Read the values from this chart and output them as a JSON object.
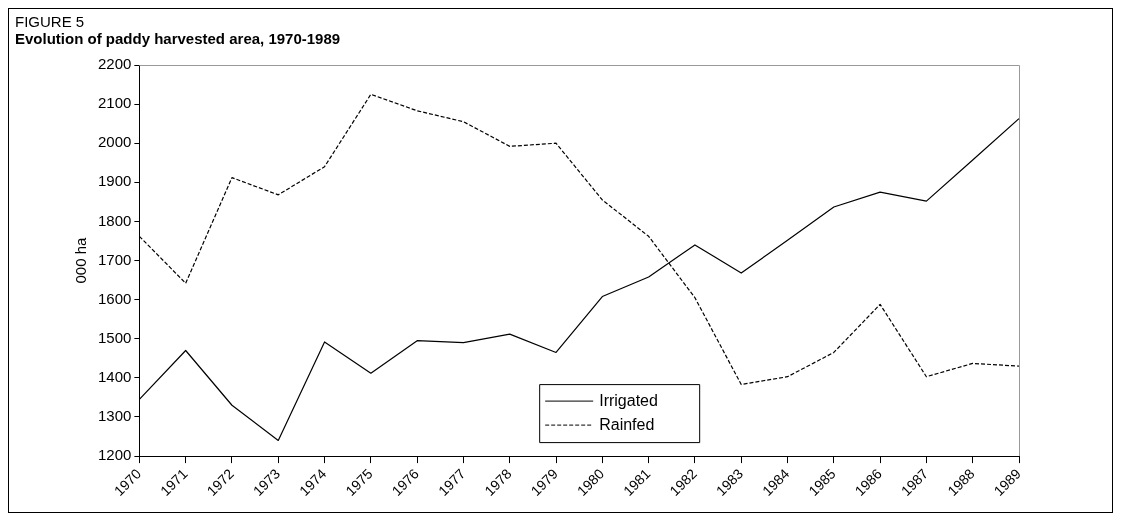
{
  "chart_data": {
    "type": "line",
    "title": "FIGURE 5",
    "subtitle": "Evolution of paddy harvested area, 1970-1989",
    "ylabel": "000 ha",
    "categories": [
      "1970",
      "1971",
      "1972",
      "1973",
      "1974",
      "1975",
      "1976",
      "1977",
      "1978",
      "1979",
      "1980",
      "1981",
      "1982",
      "1983",
      "1984",
      "1985",
      "1986",
      "1987",
      "1988",
      "1989"
    ],
    "series": [
      {
        "name": "Irrigated",
        "color": "#000000",
        "line_style": "solid",
        "values": [
          1345,
          1470,
          1330,
          1240,
          1492,
          1412,
          1495,
          1490,
          1512,
          1465,
          1608,
          1658,
          1740,
          1668,
          1752,
          1837,
          1875,
          1852,
          1957,
          2063
        ]
      },
      {
        "name": "Rainfed",
        "color": "#000000",
        "line_style": "dashed",
        "values": [
          1762,
          1642,
          1912,
          1868,
          1940,
          2125,
          2083,
          2055,
          1992,
          2000,
          1855,
          1762,
          1605,
          1383,
          1403,
          1465,
          1588,
          1403,
          1437,
          1430
        ]
      }
    ],
    "ylim": [
      1200,
      2200
    ],
    "yticks": [
      1200,
      1300,
      1400,
      1500,
      1600,
      1700,
      1800,
      1900,
      2000,
      2100,
      2200
    ],
    "grid": false,
    "legend": "bottom",
    "marker": "none"
  }
}
